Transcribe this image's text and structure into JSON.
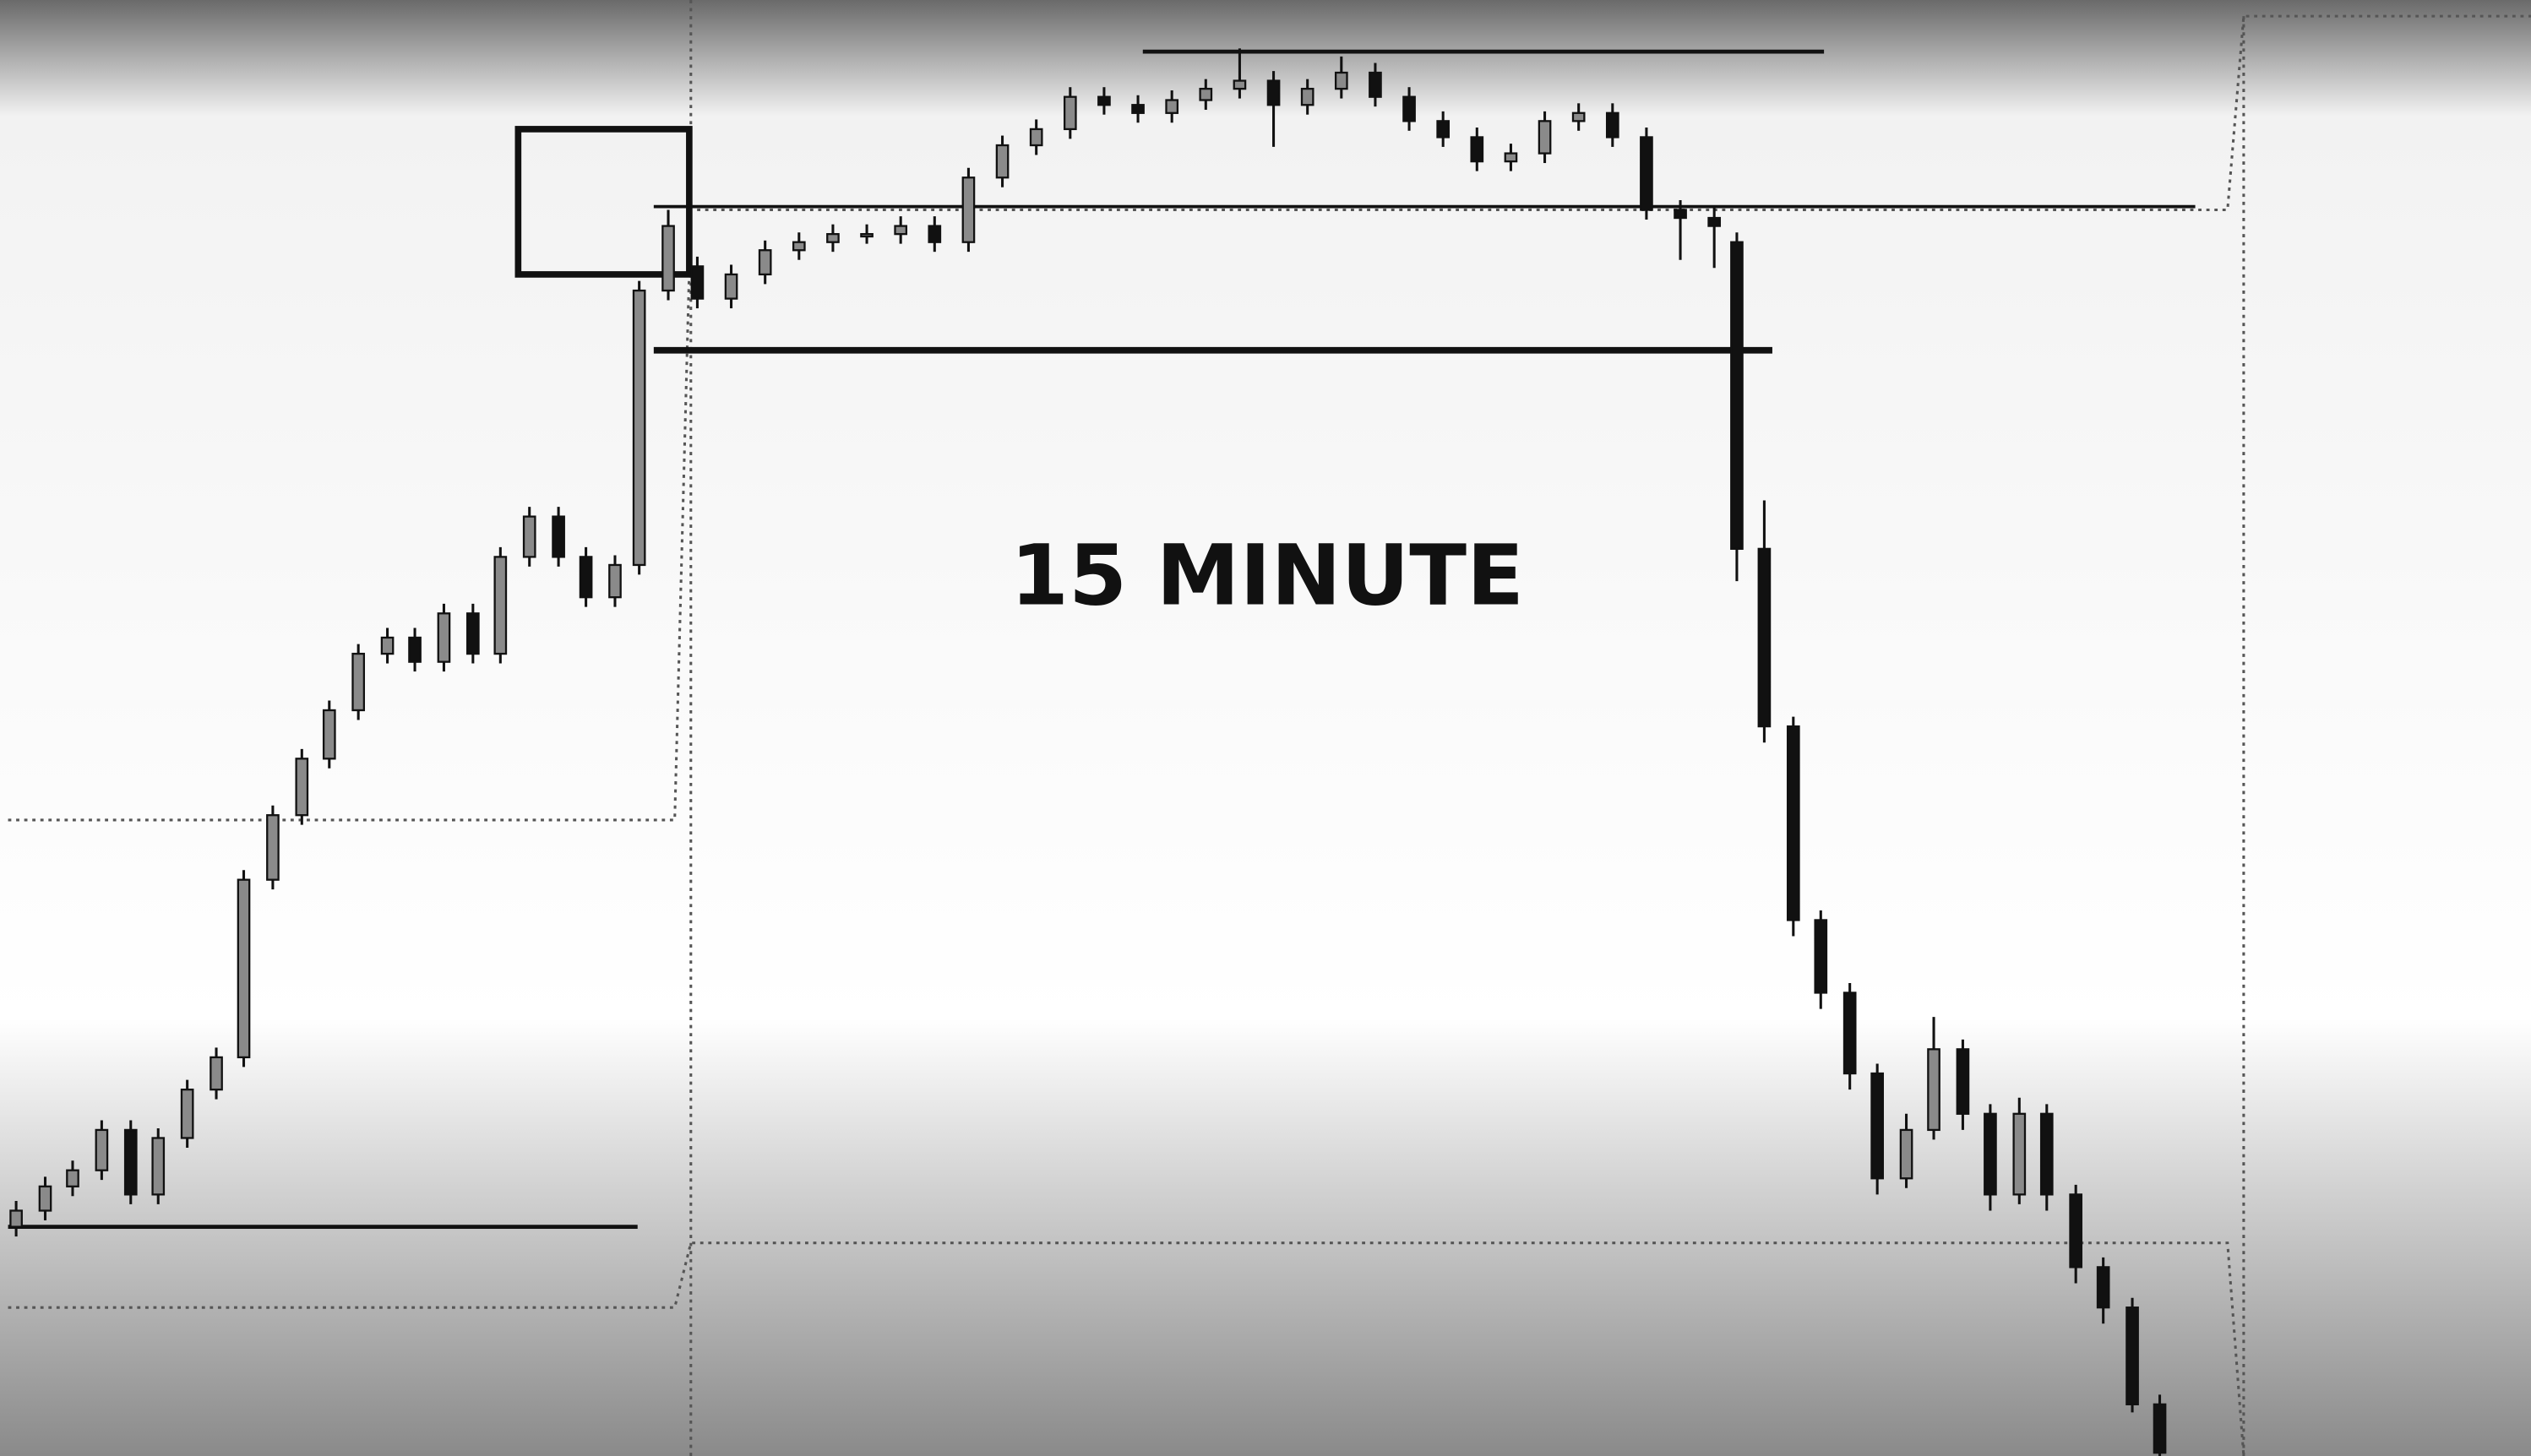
{
  "chart_data": {
    "type": "candlestick",
    "title": "15 MINUTE",
    "up_color": "#8a8a8a",
    "down_color": "#111111",
    "xlim": [
      0,
      1568
    ],
    "ylim": [
      0,
      902
    ],
    "x": [
      10,
      28,
      45,
      63,
      81,
      98,
      116,
      134,
      151,
      169,
      187,
      204,
      222,
      240,
      257,
      275,
      293,
      310,
      328,
      346,
      363,
      381,
      396,
      414,
      432,
      453,
      474,
      495,
      516,
      537,
      558,
      579,
      600,
      621,
      642,
      663,
      684,
      705,
      726,
      747,
      768,
      789,
      810,
      831,
      852,
      873,
      894,
      915,
      936,
      957,
      978,
      999,
      1020,
      1041,
      1062,
      1076,
      1093,
      1111,
      1128,
      1146,
      1163,
      1181,
      1198,
      1216,
      1233,
      1251,
      1268,
      1286,
      1303,
      1321,
      1338
    ],
    "candles": [
      [
        142,
        158,
        136,
        152
      ],
      [
        152,
        173,
        146,
        167
      ],
      [
        167,
        183,
        161,
        177
      ],
      [
        177,
        208,
        171,
        202
      ],
      [
        202,
        208,
        156,
        162
      ],
      [
        162,
        203,
        156,
        197
      ],
      [
        197,
        233,
        191,
        227
      ],
      [
        227,
        253,
        221,
        247
      ],
      [
        247,
        363,
        241,
        357
      ],
      [
        357,
        403,
        351,
        397
      ],
      [
        397,
        438,
        391,
        432
      ],
      [
        432,
        468,
        426,
        462
      ],
      [
        462,
        503,
        456,
        497
      ],
      [
        497,
        513,
        491,
        507
      ],
      [
        507,
        513,
        486,
        492
      ],
      [
        492,
        528,
        486,
        522
      ],
      [
        522,
        528,
        491,
        497
      ],
      [
        497,
        563,
        491,
        557
      ],
      [
        557,
        588,
        551,
        582
      ],
      [
        582,
        588,
        551,
        557
      ],
      [
        557,
        563,
        526,
        532
      ],
      [
        532,
        558,
        526,
        552
      ],
      [
        552,
        728,
        546,
        722
      ],
      [
        722,
        772,
        716,
        762
      ],
      [
        737,
        743,
        711,
        717
      ],
      [
        717,
        738,
        711,
        732
      ],
      [
        732,
        753,
        726,
        747
      ],
      [
        747,
        758,
        741,
        752
      ],
      [
        752,
        763,
        746,
        757
      ],
      [
        757,
        763,
        751,
        757
      ],
      [
        757,
        768,
        751,
        762
      ],
      [
        762,
        768,
        746,
        752
      ],
      [
        752,
        798,
        746,
        792
      ],
      [
        792,
        818,
        786,
        812
      ],
      [
        812,
        828,
        806,
        822
      ],
      [
        822,
        848,
        816,
        842
      ],
      [
        842,
        848,
        831,
        837
      ],
      [
        837,
        843,
        826,
        832
      ],
      [
        832,
        846,
        826,
        840
      ],
      [
        840,
        853,
        834,
        847
      ],
      [
        847,
        872,
        841,
        852
      ],
      [
        852,
        858,
        811,
        837
      ],
      [
        837,
        853,
        831,
        847
      ],
      [
        847,
        867,
        841,
        857
      ],
      [
        857,
        863,
        836,
        842
      ],
      [
        842,
        848,
        821,
        827
      ],
      [
        827,
        833,
        811,
        817
      ],
      [
        817,
        823,
        796,
        802
      ],
      [
        802,
        813,
        796,
        807
      ],
      [
        807,
        833,
        801,
        827
      ],
      [
        827,
        838,
        821,
        832
      ],
      [
        832,
        838,
        811,
        817
      ],
      [
        817,
        823,
        766,
        772
      ],
      [
        772,
        778,
        741,
        767
      ],
      [
        767,
        773,
        736,
        762
      ],
      [
        752,
        758,
        542,
        562
      ],
      [
        562,
        592,
        442,
        452
      ],
      [
        452,
        458,
        322,
        332
      ],
      [
        332,
        338,
        277,
        287
      ],
      [
        287,
        293,
        227,
        237
      ],
      [
        237,
        243,
        162,
        172
      ],
      [
        172,
        212,
        166,
        202
      ],
      [
        202,
        272,
        196,
        252
      ],
      [
        252,
        258,
        202,
        212
      ],
      [
        212,
        218,
        152,
        162
      ],
      [
        162,
        222,
        156,
        212
      ],
      [
        212,
        218,
        152,
        162
      ],
      [
        162,
        168,
        107,
        117
      ],
      [
        117,
        123,
        82,
        92
      ],
      [
        92,
        98,
        27,
        32
      ],
      [
        32,
        38,
        0,
        2
      ]
    ],
    "levels": [
      {
        "value": 870,
        "x": [
          708,
          1130
        ]
      },
      {
        "value": 774,
        "x": [
          405,
          1360
        ]
      },
      {
        "value": 685,
        "x": [
          405,
          1098
        ]
      },
      {
        "value": 142,
        "x": [
          5,
          395
        ]
      }
    ]
  }
}
